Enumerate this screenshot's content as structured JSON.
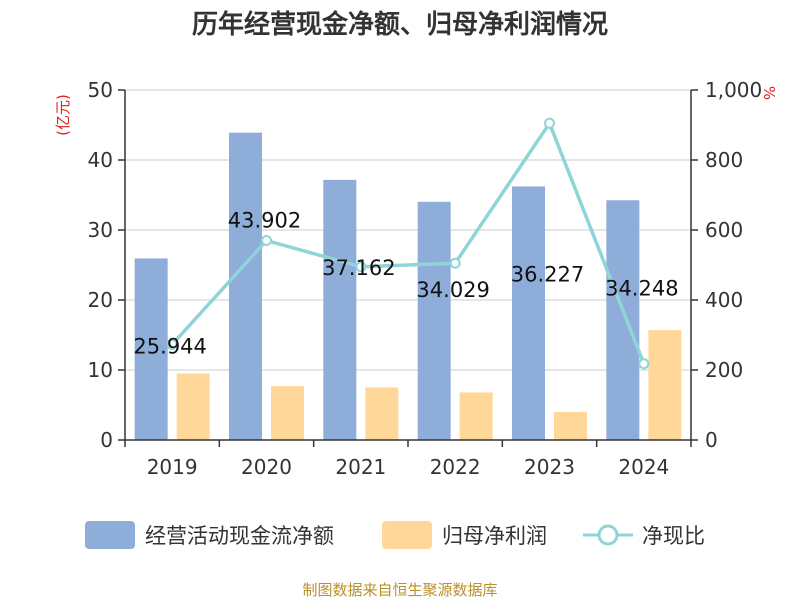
{
  "title": "历年经营现金净额、归母净利润情况",
  "source": "制图数据来自恒生聚源数据库",
  "colors": {
    "ocf": "#8eadd9",
    "np": "#ffd899",
    "ratio": "#8fd5d7",
    "axis": "#333333",
    "grid": "#cccccc",
    "unit": "#e0201b"
  },
  "chart_data": {
    "type": "bar",
    "categories": [
      "2019",
      "2020",
      "2021",
      "2022",
      "2023",
      "2024"
    ],
    "y_left": {
      "label": "(亿元)",
      "ylim": [
        0,
        50
      ],
      "ticks": [
        "0",
        "10",
        "20",
        "30",
        "40",
        "50"
      ]
    },
    "y_right": {
      "label": "%",
      "ylim": [
        0,
        1000
      ],
      "ticks": [
        "0",
        "200",
        "400",
        "600",
        "800",
        "1,000"
      ]
    },
    "series": [
      {
        "name": "经营活动现金流净额",
        "type": "bar",
        "axis": "left",
        "values": [
          25.944,
          43.902,
          37.162,
          34.029,
          36.227,
          34.248
        ],
        "labels": [
          "25.944",
          "43.902",
          "37.162",
          "34.029",
          "36.227",
          "34.248"
        ]
      },
      {
        "name": "归母净利润",
        "type": "bar",
        "axis": "left",
        "values": [
          9.5,
          7.7,
          7.5,
          6.8,
          4.0,
          15.7
        ]
      },
      {
        "name": "净现比",
        "type": "line",
        "axis": "right",
        "values": [
          273,
          570,
          495,
          505,
          905,
          218
        ]
      }
    ],
    "grid": true,
    "legend": "bottom"
  }
}
